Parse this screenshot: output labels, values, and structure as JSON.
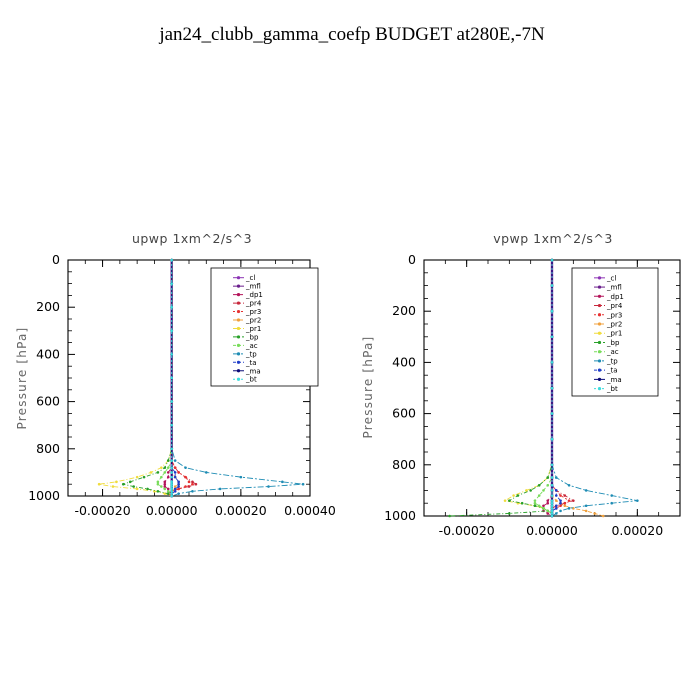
{
  "page": {
    "title": "jan24_clubb_gamma_coefp  BUDGET at280E,-7N",
    "ylabel": "Pressure [hPa]"
  },
  "legend_terms": [
    "_cl",
    "_mfl",
    "_dp1",
    "_pr4",
    "_pr3",
    "_pr2",
    "_pr1",
    "_bp",
    "_ac",
    "_tp",
    "_ta",
    "_ma",
    "_bt"
  ],
  "series_colors": {
    "_cl": "#8b32b4",
    "_mfl": "#6a1e8c",
    "_dp1": "#b4145a",
    "_pr4": "#c8283c",
    "_pr3": "#e63232",
    "_pr2": "#f0a03c",
    "_pr1": "#f0dc3c",
    "_bp": "#28a028",
    "_ac": "#78dc5a",
    "_tp": "#1e8cb4",
    "_ta": "#1e3cc8",
    "_ma": "#0a0a78",
    "_bt": "#3cdcdc"
  },
  "chart_data": [
    {
      "type": "line",
      "title": "upwp   1xm^2/s^3",
      "ylabel": "Pressure [hPa]",
      "xlim": [
        -0.0003,
        0.0004
      ],
      "ylim": [
        1000,
        0
      ],
      "xticks": [
        -0.0002,
        0.0,
        0.0002,
        0.0004
      ],
      "xtick_labels": [
        "-0.00020",
        "0.00000",
        "0.00020",
        "0.00040"
      ],
      "yticks": [
        0,
        200,
        400,
        600,
        800,
        1000
      ],
      "ytick_labels": [
        "0",
        "200",
        "400",
        "600",
        "800",
        "1000"
      ],
      "y": [
        0,
        100,
        200,
        300,
        400,
        500,
        600,
        700,
        800,
        850,
        880,
        900,
        920,
        940,
        950,
        960,
        970,
        980,
        990,
        1000
      ],
      "series": [
        {
          "name": "_cl",
          "values": [
            0,
            0,
            0,
            0,
            0,
            0,
            0,
            0,
            0,
            0,
            0,
            0,
            0,
            0,
            0,
            0,
            0,
            0,
            0,
            0
          ]
        },
        {
          "name": "_mfl",
          "values": [
            0,
            0,
            0,
            0,
            0,
            0,
            0,
            0,
            0,
            0,
            0,
            0,
            0,
            0,
            0,
            0,
            0,
            0,
            0,
            0
          ]
        },
        {
          "name": "_dp1",
          "values": [
            0,
            0,
            0,
            0,
            0,
            0,
            0,
            0,
            0,
            0,
            0,
            -1e-05,
            -1e-05,
            -2e-05,
            -2e-05,
            -2e-05,
            -1e-05,
            -1e-05,
            0,
            0
          ]
        },
        {
          "name": "_pr4",
          "values": [
            0,
            0,
            0,
            0,
            0,
            0,
            0,
            0,
            0,
            0,
            1e-05,
            2e-05,
            4e-05,
            6e-05,
            7e-05,
            5e-05,
            2e-05,
            1e-05,
            0,
            0
          ]
        },
        {
          "name": "_pr3",
          "values": [
            0,
            0,
            0,
            0,
            0,
            0,
            0,
            0,
            0,
            0,
            1e-05,
            2e-05,
            4e-05,
            5e-05,
            6e-05,
            4e-05,
            2e-05,
            0,
            -1e-05,
            0
          ]
        },
        {
          "name": "_pr2",
          "values": [
            0,
            0,
            0,
            0,
            0,
            0,
            0,
            0,
            0,
            0,
            0,
            0,
            1e-05,
            2e-05,
            2e-05,
            1e-05,
            1e-05,
            0,
            0,
            0
          ]
        },
        {
          "name": "_pr1",
          "values": [
            0,
            0,
            0,
            0,
            0,
            0,
            0,
            0,
            0,
            -1e-05,
            -3e-05,
            -6e-05,
            -0.0001,
            -0.00016,
            -0.00021,
            -0.00017,
            -0.0001,
            -5e-05,
            -2e-05,
            0
          ]
        },
        {
          "name": "_bp",
          "values": [
            0,
            0,
            0,
            0,
            0,
            0,
            0,
            0,
            0,
            -1e-05,
            -2e-05,
            -4e-05,
            -8e-05,
            -0.00012,
            -0.00014,
            -0.00011,
            -7e-05,
            -4e-05,
            -1e-05,
            0
          ]
        },
        {
          "name": "_ac",
          "values": [
            0,
            0,
            0,
            0,
            0,
            0,
            0,
            0,
            0,
            0,
            -1e-05,
            -2e-05,
            -3e-05,
            -4e-05,
            -4e-05,
            -3e-05,
            -2e-05,
            -1e-05,
            0,
            0
          ]
        },
        {
          "name": "_tp",
          "values": [
            0,
            0,
            0,
            0,
            0,
            0,
            0,
            0,
            0,
            1e-05,
            4e-05,
            0.0001,
            0.0002,
            0.00032,
            0.00038,
            0.00028,
            0.00014,
            6e-05,
            2e-05,
            0
          ]
        },
        {
          "name": "_ta",
          "values": [
            0,
            0,
            0,
            0,
            0,
            0,
            0,
            0,
            0,
            0,
            0,
            1e-05,
            1e-05,
            2e-05,
            2e-05,
            2e-05,
            1e-05,
            1e-05,
            0,
            0
          ]
        },
        {
          "name": "_ma",
          "values": [
            0,
            0,
            0,
            0,
            0,
            0,
            0,
            0,
            0,
            0,
            0,
            0,
            0,
            0,
            0,
            0,
            0,
            0,
            0,
            0
          ]
        },
        {
          "name": "_bt",
          "values": [
            0,
            0,
            0,
            0,
            0,
            0,
            0,
            0,
            0,
            0,
            0,
            0,
            0,
            0,
            0,
            0,
            0,
            0,
            0,
            0
          ]
        }
      ]
    },
    {
      "type": "line",
      "title": "vpwp   1xm^2/s^3",
      "ylabel": "Pressure [hPa]",
      "xlim": [
        -0.0003,
        0.0003
      ],
      "ylim": [
        1000,
        0
      ],
      "xticks": [
        -0.0002,
        0.0,
        0.0002
      ],
      "xtick_labels": [
        "-0.00020",
        "0.00000",
        "0.00020"
      ],
      "yticks": [
        0,
        200,
        400,
        600,
        800,
        1000
      ],
      "ytick_labels": [
        "0",
        "200",
        "400",
        "600",
        "800",
        "1000"
      ],
      "y": [
        0,
        100,
        200,
        300,
        400,
        500,
        600,
        700,
        800,
        850,
        880,
        900,
        920,
        940,
        950,
        960,
        970,
        980,
        990,
        1000
      ],
      "series": [
        {
          "name": "_cl",
          "values": [
            0,
            0,
            0,
            0,
            0,
            0,
            0,
            0,
            0,
            0,
            0,
            0,
            0,
            0,
            0,
            0,
            0,
            0,
            0,
            0
          ]
        },
        {
          "name": "_mfl",
          "values": [
            0,
            0,
            0,
            0,
            0,
            0,
            0,
            0,
            0,
            0,
            0,
            0,
            0,
            0,
            0,
            0,
            0,
            0,
            0,
            0
          ]
        },
        {
          "name": "_dp1",
          "values": [
            0,
            0,
            0,
            0,
            0,
            0,
            0,
            0,
            0,
            0,
            0,
            0,
            0,
            -1e-05,
            -1e-05,
            -2e-05,
            -2e-05,
            -2e-05,
            -1e-05,
            0
          ]
        },
        {
          "name": "_pr4",
          "values": [
            0,
            0,
            0,
            0,
            0,
            0,
            0,
            0,
            0,
            0,
            0,
            1e-05,
            3e-05,
            5e-05,
            3e-05,
            1e-05,
            0,
            0,
            0,
            0
          ]
        },
        {
          "name": "_pr3",
          "values": [
            0,
            0,
            0,
            0,
            0,
            0,
            0,
            0,
            0,
            0,
            0,
            1e-05,
            2e-05,
            4e-05,
            3e-05,
            2e-05,
            1e-05,
            0,
            0,
            0
          ]
        },
        {
          "name": "_pr2",
          "values": [
            0,
            0,
            0,
            0,
            0,
            0,
            0,
            0,
            0,
            0,
            0,
            0,
            0,
            1e-05,
            2e-05,
            3e-05,
            5e-05,
            8e-05,
            0.0001,
            0.00012
          ]
        },
        {
          "name": "_pr1",
          "values": [
            0,
            0,
            0,
            0,
            0,
            0,
            0,
            0,
            0,
            -1e-05,
            -3e-05,
            -6e-05,
            -9e-05,
            -0.00011,
            -8e-05,
            -4e-05,
            -2e-05,
            -1e-05,
            0,
            0
          ]
        },
        {
          "name": "_bp",
          "values": [
            0,
            0,
            0,
            0,
            0,
            0,
            0,
            0,
            0,
            -1e-05,
            -3e-05,
            -5e-05,
            -8e-05,
            -0.0001,
            -7e-05,
            -4e-05,
            -2e-05,
            -1e-05,
            -0.0001,
            -0.00024
          ]
        },
        {
          "name": "_ac",
          "values": [
            0,
            0,
            0,
            0,
            0,
            0,
            0,
            0,
            0,
            0,
            -1e-05,
            -2e-05,
            -3e-05,
            -4e-05,
            -4e-05,
            -3e-05,
            -2e-05,
            -1e-05,
            0,
            0
          ]
        },
        {
          "name": "_tp",
          "values": [
            0,
            0,
            0,
            0,
            0,
            0,
            0,
            0,
            0,
            1e-05,
            4e-05,
            8e-05,
            0.00014,
            0.0002,
            0.00014,
            8e-05,
            4e-05,
            2e-05,
            1e-05,
            0
          ]
        },
        {
          "name": "_ta",
          "values": [
            0,
            0,
            0,
            0,
            0,
            0,
            0,
            0,
            0,
            0,
            0,
            1e-05,
            1e-05,
            2e-05,
            2e-05,
            1e-05,
            1e-05,
            0,
            0,
            0
          ]
        },
        {
          "name": "_ma",
          "values": [
            0,
            0,
            0,
            0,
            0,
            0,
            0,
            0,
            0,
            0,
            0,
            0,
            0,
            0,
            0,
            0,
            0,
            0,
            0,
            0
          ]
        },
        {
          "name": "_bt",
          "values": [
            0,
            0,
            0,
            0,
            0,
            0,
            0,
            0,
            0,
            0,
            0,
            0,
            0,
            0,
            0,
            0,
            0,
            0,
            0,
            0
          ]
        }
      ]
    }
  ]
}
